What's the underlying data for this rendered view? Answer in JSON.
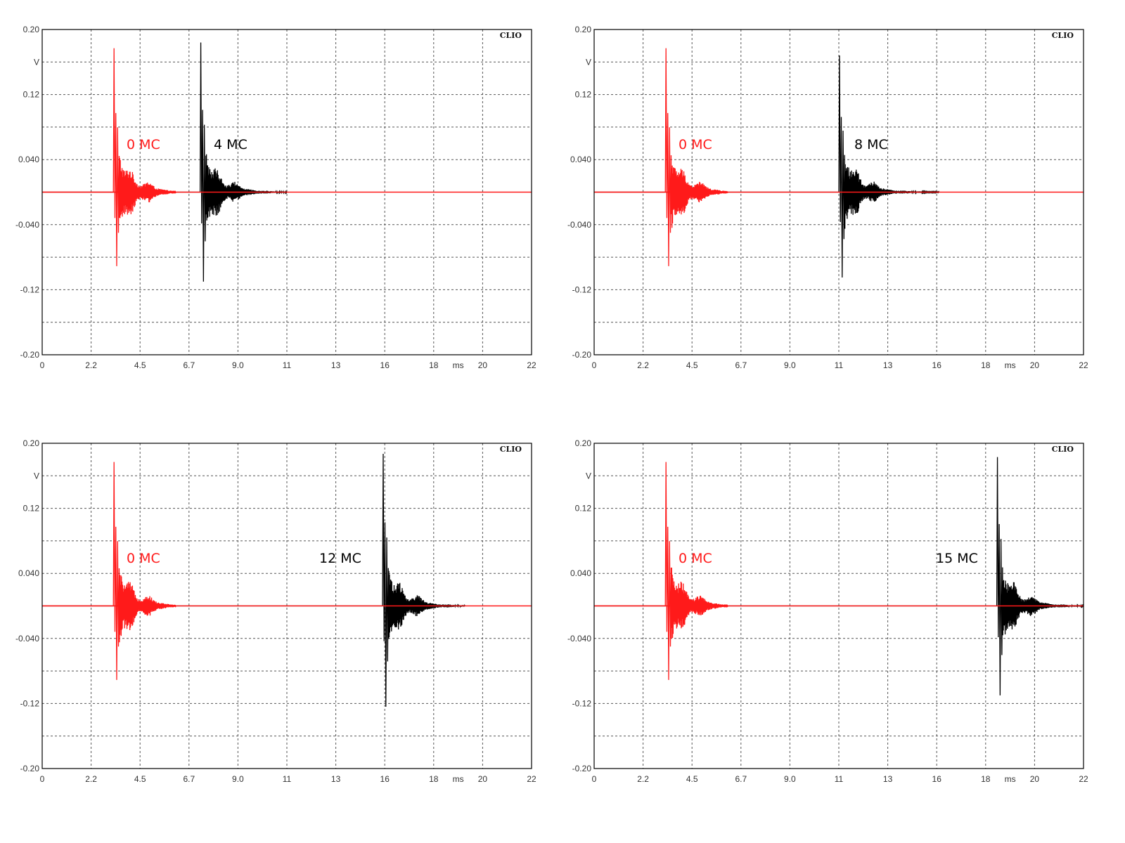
{
  "colors": {
    "reference": "#ff1a1a",
    "measured": "#000000",
    "grid": "#555555",
    "frame": "#000000"
  },
  "chart_data": [
    {
      "type": "line",
      "brand": "CLIO",
      "xlabel": "ms",
      "ylabel": "V",
      "xlim": [
        0,
        22
      ],
      "ylim": [
        -0.2,
        0.2
      ],
      "x_ticks": [
        "0",
        "2.2",
        "4.5",
        "6.7",
        "9.0",
        "11",
        "13",
        "16",
        "18",
        "20",
        "22"
      ],
      "y_ticks": [
        "0.20",
        "0.12",
        "0.040",
        "-0.040",
        "-0.12",
        "-0.20"
      ],
      "grid": true,
      "series": [
        {
          "name": "0 MC",
          "role": "reference",
          "onset_ms": 3.2,
          "peak_pos": 0.177,
          "peak_neg": -0.091,
          "tail_end_ms": 6.0
        },
        {
          "name": "4 MC",
          "role": "measured",
          "onset_ms": 7.1,
          "peak_pos": 0.184,
          "peak_neg": -0.11,
          "tail_end_ms": 11.0
        }
      ]
    },
    {
      "type": "line",
      "brand": "CLIO",
      "xlabel": "ms",
      "ylabel": "V",
      "xlim": [
        0,
        22
      ],
      "ylim": [
        -0.2,
        0.2
      ],
      "x_ticks": [
        "0",
        "2.2",
        "4.5",
        "6.7",
        "9.0",
        "11",
        "13",
        "16",
        "18",
        "20",
        "22"
      ],
      "y_ticks": [
        "0.20",
        "0.12",
        "0.040",
        "-0.040",
        "-0.12",
        "-0.20"
      ],
      "grid": true,
      "series": [
        {
          "name": "0 MC",
          "role": "reference",
          "onset_ms": 3.2,
          "peak_pos": 0.177,
          "peak_neg": -0.091,
          "tail_end_ms": 6.0
        },
        {
          "name": "8 MC",
          "role": "measured",
          "onset_ms": 11.0,
          "peak_pos": 0.168,
          "peak_neg": -0.105,
          "tail_end_ms": 15.5
        }
      ]
    },
    {
      "type": "line",
      "brand": "CLIO",
      "xlabel": "ms",
      "ylabel": "V",
      "xlim": [
        0,
        22
      ],
      "ylim": [
        -0.2,
        0.2
      ],
      "x_ticks": [
        "0",
        "2.2",
        "4.5",
        "6.7",
        "9.0",
        "11",
        "13",
        "16",
        "18",
        "20",
        "22"
      ],
      "y_ticks": [
        "0.20",
        "0.12",
        "0.040",
        "-0.040",
        "-0.12",
        "-0.20"
      ],
      "grid": true,
      "series": [
        {
          "name": "0 MC",
          "role": "reference",
          "onset_ms": 3.2,
          "peak_pos": 0.177,
          "peak_neg": -0.091,
          "tail_end_ms": 6.0
        },
        {
          "name": "12 MC",
          "role": "measured",
          "onset_ms": 15.3,
          "peak_pos": 0.187,
          "peak_neg": -0.124,
          "tail_end_ms": 19.0
        }
      ]
    },
    {
      "type": "line",
      "brand": "CLIO",
      "xlabel": "ms",
      "ylabel": "V",
      "xlim": [
        0,
        22
      ],
      "ylim": [
        -0.2,
        0.2
      ],
      "x_ticks": [
        "0",
        "2.2",
        "4.5",
        "6.7",
        "9.0",
        "11",
        "13",
        "16",
        "18",
        "20",
        "22"
      ],
      "y_ticks": [
        "0.20",
        "0.12",
        "0.040",
        "-0.040",
        "-0.12",
        "-0.20"
      ],
      "grid": true,
      "series": [
        {
          "name": "0 MC",
          "role": "reference",
          "onset_ms": 3.2,
          "peak_pos": 0.177,
          "peak_neg": -0.091,
          "tail_end_ms": 6.0
        },
        {
          "name": "15 MC",
          "role": "measured",
          "onset_ms": 18.1,
          "peak_pos": 0.183,
          "peak_neg": -0.11,
          "tail_end_ms": 22.0
        }
      ]
    }
  ]
}
